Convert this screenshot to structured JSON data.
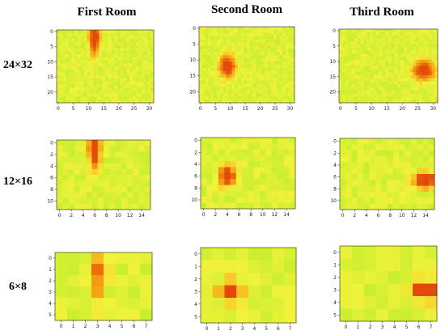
{
  "column_titles": [
    "First Room",
    "Second Room",
    "Third Room"
  ],
  "row_titles": [
    "24×32",
    "12×16",
    "6×8"
  ],
  "chart_data": {
    "type": "heatmap",
    "colormap": [
      "#90e020",
      "#c8ee30",
      "#f2f23a",
      "#f8c428",
      "#f39a10",
      "#ec6a0a",
      "#e34a0a"
    ],
    "panels": [
      {
        "room": "First Room",
        "resolution": "24×32",
        "rows": 24,
        "cols": 32,
        "x_ticks": [
          0,
          5,
          10,
          15,
          20,
          25,
          30
        ],
        "y_ticks": [
          0,
          5,
          10,
          15,
          20
        ],
        "hotspots": [
          {
            "row": 1,
            "col": 12,
            "rx": 1.2,
            "ry": 2.2,
            "peak": 0.75
          },
          {
            "row": 5,
            "col": 12,
            "rx": 1.0,
            "ry": 3.0,
            "peak": 0.6
          }
        ]
      },
      {
        "room": "Second Room",
        "resolution": "24×32",
        "rows": 24,
        "cols": 32,
        "x_ticks": [
          0,
          5,
          10,
          15,
          20,
          25,
          30
        ],
        "y_ticks": [
          0,
          5,
          10,
          15,
          20
        ],
        "hotspots": [
          {
            "row": 12,
            "col": 9,
            "rx": 1.8,
            "ry": 2.4,
            "peak": 0.95
          }
        ]
      },
      {
        "room": "Third Room",
        "resolution": "24×32",
        "rows": 24,
        "cols": 32,
        "x_ticks": [
          0,
          5,
          10,
          15,
          20,
          25,
          30
        ],
        "y_ticks": [
          0,
          5,
          10,
          15,
          20
        ],
        "hotspots": [
          {
            "row": 13,
            "col": 27,
            "rx": 2.4,
            "ry": 2.2,
            "peak": 0.9
          }
        ]
      },
      {
        "room": "First Room",
        "resolution": "12×16",
        "rows": 12,
        "cols": 16,
        "x_ticks": [
          0,
          2,
          4,
          6,
          8,
          10,
          12,
          14
        ],
        "y_ticks": [
          0,
          2,
          4,
          6,
          8,
          10
        ],
        "hotspots": [
          {
            "row": 0.5,
            "col": 6,
            "rx": 0.8,
            "ry": 1.2,
            "peak": 0.8
          },
          {
            "row": 3,
            "col": 6,
            "rx": 0.6,
            "ry": 1.6,
            "peak": 0.55
          }
        ]
      },
      {
        "room": "Second Room",
        "resolution": "12×16",
        "rows": 12,
        "cols": 16,
        "x_ticks": [
          0,
          2,
          4,
          6,
          8,
          10,
          12,
          14
        ],
        "y_ticks": [
          0,
          2,
          4,
          6,
          8,
          10
        ],
        "hotspots": [
          {
            "row": 6,
            "col": 4,
            "rx": 0.9,
            "ry": 1.1,
            "peak": 1.0
          }
        ]
      },
      {
        "room": "Third Room",
        "resolution": "12×16",
        "rows": 12,
        "cols": 16,
        "x_ticks": [
          0,
          2,
          4,
          6,
          8,
          10,
          12,
          14
        ],
        "y_ticks": [
          0,
          2,
          4,
          6,
          8,
          10
        ],
        "hotspots": [
          {
            "row": 6.5,
            "col": 14,
            "rx": 1.4,
            "ry": 0.9,
            "peak": 1.0
          }
        ]
      },
      {
        "room": "First Room",
        "resolution": "6×8",
        "rows": 6,
        "cols": 8,
        "x_ticks": [
          0,
          1,
          2,
          3,
          4,
          5,
          6,
          7
        ],
        "y_ticks": [
          0,
          1,
          2,
          3,
          4,
          5
        ],
        "hotspots": [
          {
            "row": 1,
            "col": 3,
            "rx": 0.5,
            "ry": 0.8,
            "peak": 0.6
          },
          {
            "row": 3,
            "col": 3,
            "rx": 0.4,
            "ry": 1.0,
            "peak": 0.3
          }
        ]
      },
      {
        "room": "Second Room",
        "resolution": "6×8",
        "rows": 6,
        "cols": 8,
        "x_ticks": [
          0,
          1,
          2,
          3,
          4,
          5,
          6,
          7
        ],
        "y_ticks": [
          0,
          1,
          2,
          3,
          4,
          5
        ],
        "hotspots": [
          {
            "row": 3,
            "col": 2,
            "rx": 0.6,
            "ry": 0.6,
            "peak": 1.0
          }
        ]
      },
      {
        "room": "Third Room",
        "resolution": "6×8",
        "rows": 6,
        "cols": 8,
        "x_ticks": [
          0,
          1,
          2,
          3,
          4,
          5,
          6,
          7
        ],
        "y_ticks": [
          0,
          1,
          2,
          3,
          4,
          5
        ],
        "hotspots": [
          {
            "row": 3,
            "col": 7,
            "rx": 0.7,
            "ry": 0.5,
            "peak": 0.95
          },
          {
            "row": 3,
            "col": 6,
            "rx": 0.5,
            "ry": 0.4,
            "peak": 0.65
          }
        ]
      }
    ]
  }
}
